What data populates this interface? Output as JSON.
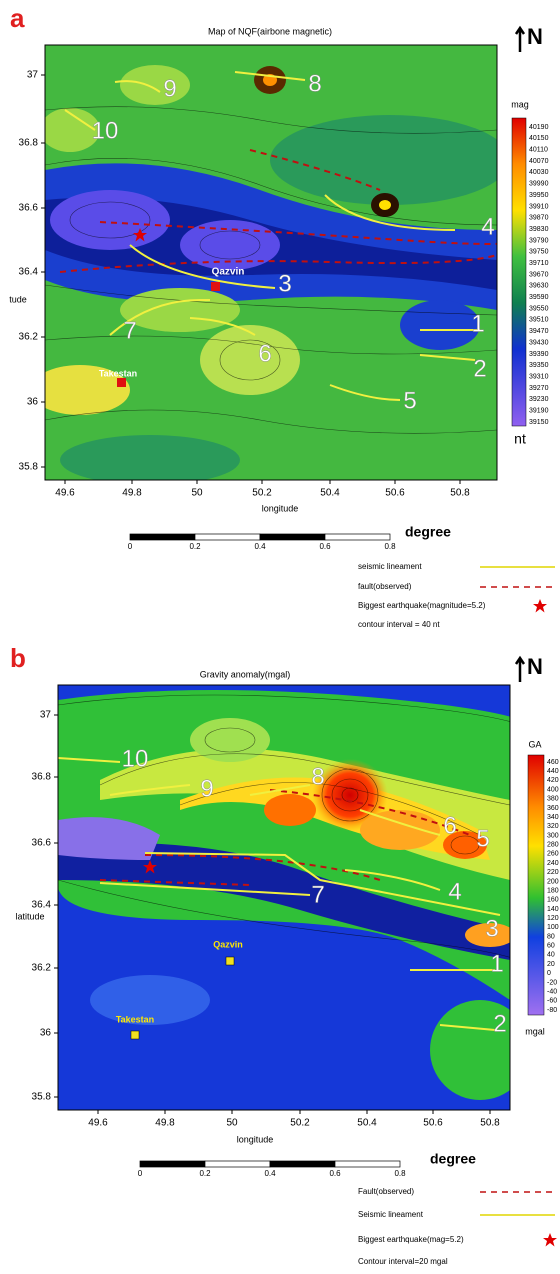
{
  "panels": [
    {
      "label": "a",
      "title": "Map of NQF(airbone magnetic)",
      "north": "N",
      "y_axis_label": "tude",
      "x_axis_label": "longitude",
      "yticks": [
        "37",
        "36.8",
        "36.6",
        "36.4",
        "36.2",
        "36",
        "35.8"
      ],
      "xticks": [
        "49.6",
        "49.8",
        "50",
        "50.2",
        "50.4",
        "50.6",
        "50.8"
      ],
      "colorbar_title": "mag",
      "colorbar_unit": "nt",
      "colorbar_labels": [
        "40190",
        "40150",
        "40110",
        "40070",
        "40030",
        "39990",
        "39950",
        "39910",
        "39870",
        "39830",
        "39790",
        "39750",
        "39710",
        "39670",
        "39630",
        "39590",
        "39550",
        "39510",
        "39470",
        "39430",
        "39390",
        "39350",
        "39310",
        "39270",
        "39230",
        "39190",
        "39150"
      ],
      "scale_labels": [
        "0",
        "0.2",
        "0.4",
        "0.6",
        "0.8"
      ],
      "scale_unit": "degree",
      "legend": [
        "seismic lineament",
        "fault(observed)",
        "Biggest earthquake(magnitude=5.2)",
        "contour interval = 40 nt"
      ],
      "lineaments": [
        "1",
        "2",
        "3",
        "4",
        "5",
        "6",
        "7",
        "8",
        "9",
        "10"
      ],
      "cities": [
        "Qazvin",
        "Takestan"
      ]
    },
    {
      "label": "b",
      "title": "Gravity anomaly(mgal)",
      "north": "N",
      "y_axis_label": "latitude",
      "x_axis_label": "longitude",
      "yticks": [
        "37",
        "36.8",
        "36.6",
        "36.4",
        "36.2",
        "36",
        "35.8"
      ],
      "xticks": [
        "49.6",
        "49.8",
        "50",
        "50.2",
        "50.4",
        "50.6",
        "50.8"
      ],
      "colorbar_title": "GA",
      "colorbar_unit": "mgal",
      "colorbar_labels": [
        "460",
        "440",
        "420",
        "400",
        "380",
        "360",
        "340",
        "320",
        "300",
        "280",
        "260",
        "240",
        "220",
        "200",
        "180",
        "160",
        "140",
        "120",
        "100",
        "80",
        "60",
        "40",
        "20",
        "0",
        "-20",
        "-40",
        "-60",
        "-80"
      ],
      "scale_labels": [
        "0",
        "0.2",
        "0.4",
        "0.6",
        "0.8"
      ],
      "scale_unit": "degree",
      "legend": [
        "Fault(observed)",
        "Seismic lineament",
        "Biggest earthquake(mag=5.2)",
        "Contour interval=20 mgal"
      ],
      "lineaments": [
        "1",
        "2",
        "3",
        "4",
        "5",
        "6",
        "7",
        "8",
        "9",
        "10"
      ],
      "cities": [
        "Qazvin",
        "Takestan"
      ]
    }
  ]
}
